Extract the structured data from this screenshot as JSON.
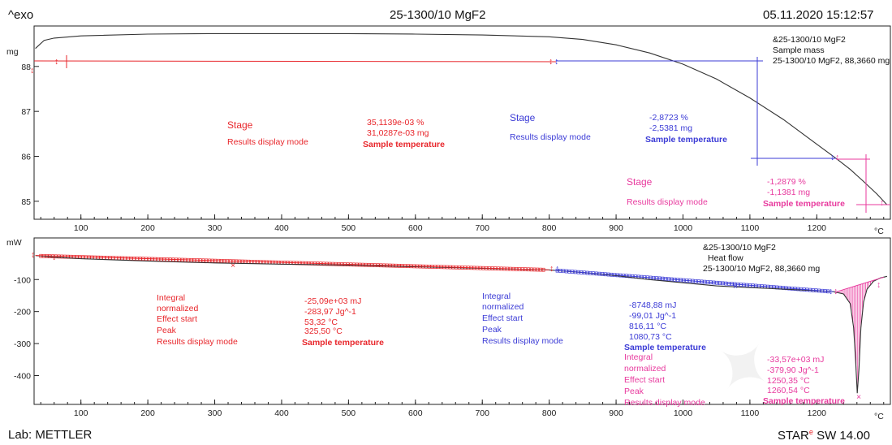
{
  "header": {
    "left": "^exo",
    "title": "25-1300/10 MgF2",
    "datetime": "05.11.2020 15:12:57"
  },
  "footer": {
    "lab": "Lab: METTLER",
    "software_prefix": "STAR",
    "software_mark": "e",
    "software_suffix": " SW 14.00"
  },
  "colors": {
    "red": "#e8262b",
    "blue": "#3b3bd6",
    "magenta": "#e83a9e",
    "curve": "#333333",
    "axis": "#222222"
  },
  "chart_data": [
    {
      "type": "line",
      "ylabel": "mg",
      "xlabel": "°C",
      "xlim": [
        30,
        1310
      ],
      "ylim": [
        84.6,
        88.9
      ],
      "xticks": [
        "100",
        "200",
        "300",
        "400",
        "500",
        "600",
        "700",
        "800",
        "900",
        "1000",
        "1100",
        "1200"
      ],
      "yticks": [
        "85",
        "86",
        "87",
        "88"
      ],
      "legend": {
        "line1": "&25-1300/10 MgF2",
        "line2": "Sample mass",
        "line3": "25-1300/10 MgF2, 88,3660 mg"
      },
      "series": [
        {
          "x": [
            32,
            45,
            60,
            100,
            200,
            300,
            400,
            500,
            600,
            700,
            800,
            850,
            900,
            950,
            1000,
            1050,
            1100,
            1150,
            1200,
            1230,
            1250,
            1270,
            1290,
            1305
          ],
          "y": [
            88.4,
            88.58,
            88.63,
            88.68,
            88.72,
            88.73,
            88.73,
            88.73,
            88.72,
            88.7,
            88.66,
            88.6,
            88.48,
            88.3,
            88.05,
            87.72,
            87.3,
            86.82,
            86.27,
            85.94,
            85.71,
            85.44,
            85.16,
            84.92
          ]
        }
      ],
      "annotations": [
        {
          "color": "red",
          "labels": [
            "Stage",
            "Results display mode"
          ],
          "values": [
            "35,1139e-03 %",
            "31,0287e-03 mg",
            "Sample temperature"
          ]
        },
        {
          "color": "blue",
          "labels": [
            "Stage",
            "Results display mode"
          ],
          "values": [
            "-2,8723 %",
            "-2,5381 mg",
            "Sample temperature"
          ]
        },
        {
          "color": "magenta",
          "labels": [
            "Stage",
            "Results display mode"
          ],
          "values": [
            "-1,2879 %",
            "-1,1381 mg",
            "Sample temperature"
          ]
        }
      ]
    },
    {
      "type": "line",
      "ylabel": "mW",
      "xlabel": "°C",
      "xlim": [
        30,
        1310
      ],
      "ylim": [
        -490,
        30
      ],
      "xticks": [
        "100",
        "200",
        "300",
        "400",
        "500",
        "600",
        "700",
        "800",
        "900",
        "1000",
        "1100",
        "1200"
      ],
      "yticks": [
        "-100",
        "-200",
        "-300",
        "-400"
      ],
      "legend": {
        "line1": "&25-1300/10 MgF2",
        "line2": "Heat flow",
        "line3": "25-1300/10 MgF2, 88,3660 mg"
      },
      "series": [
        {
          "x": [
            32,
            60,
            100,
            200,
            300,
            400,
            500,
            600,
            700,
            800,
            850,
            900,
            950,
            1000,
            1050,
            1100,
            1150,
            1200,
            1225,
            1240,
            1250,
            1255,
            1258,
            1260.5,
            1263,
            1266,
            1270,
            1275,
            1285,
            1295,
            1305
          ],
          "y": [
            -25,
            -30,
            -35,
            -42,
            -48,
            -52,
            -55,
            -60,
            -65,
            -70,
            -78,
            -88,
            -100,
            -110,
            -120,
            -125,
            -130,
            -135,
            -138,
            -145,
            -175,
            -250,
            -350,
            -455,
            -380,
            -250,
            -170,
            -130,
            -105,
            -95,
            -90
          ]
        }
      ],
      "annotations": [
        {
          "color": "red",
          "labels": [
            "Integral",
            " normalized",
            "Effect start",
            "Peak",
            "Results display mode"
          ],
          "values": [
            "-25,09e+03 mJ",
            "-283,97 Jg^-1",
            "53,32 °C",
            "325,50 °C",
            "Sample temperature"
          ]
        },
        {
          "color": "blue",
          "labels": [
            "Integral",
            " normalized",
            "Effect start",
            "Peak",
            "Results display mode"
          ],
          "values": [
            "-8748,88 mJ",
            "-99,01 Jg^-1",
            "816,11 °C",
            "1080,73 °C",
            "Sample temperature"
          ]
        },
        {
          "color": "magenta",
          "labels": [
            "Integral",
            " normalized",
            "Effect start",
            "Peak",
            "Results display mode"
          ],
          "values": [
            "-33,57e+03 mJ",
            "-379,90 Jg^-1",
            "1250,35 °C",
            "1260,54 °C",
            "Sample temperature"
          ]
        }
      ]
    }
  ]
}
